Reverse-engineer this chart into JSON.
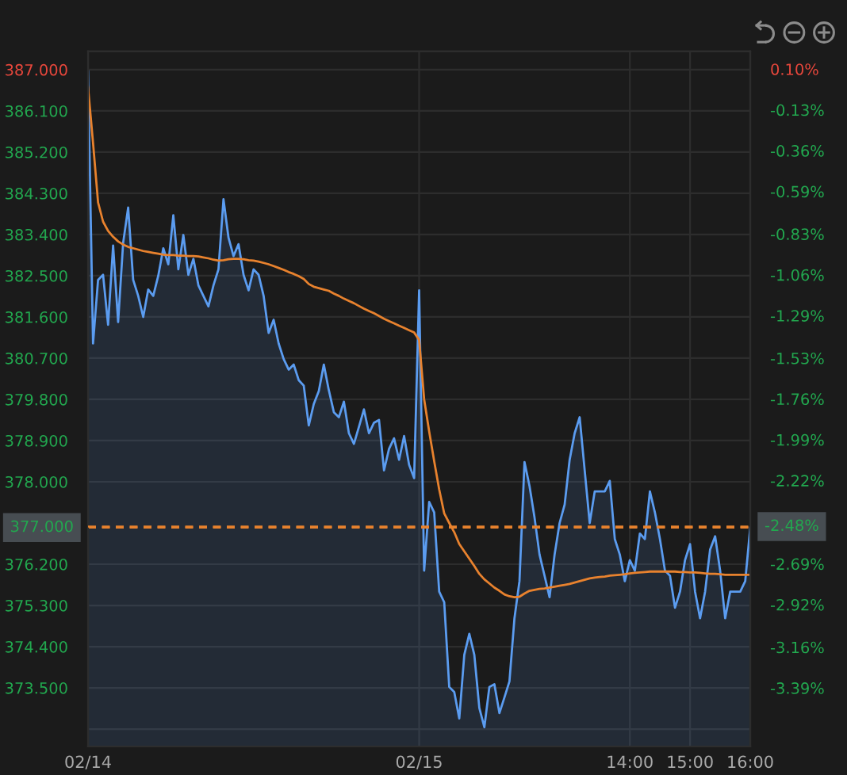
{
  "chart_data": {
    "type": "area",
    "categories": [
      "02/14",
      null,
      null,
      null,
      null,
      null,
      null,
      null,
      null,
      null,
      null,
      null,
      null,
      null,
      null,
      null,
      null,
      null,
      null,
      null,
      null,
      null,
      null,
      null,
      null,
      null,
      null,
      null,
      null,
      null,
      null,
      null,
      null,
      null,
      null,
      null,
      null,
      null,
      null,
      null,
      null,
      null,
      null,
      null,
      null,
      null,
      null,
      null,
      null,
      null,
      null,
      null,
      null,
      null,
      null,
      null,
      null,
      null,
      null,
      null,
      null,
      null,
      null,
      null,
      null,
      null,
      "02/15",
      null,
      null,
      null,
      null,
      null,
      null,
      null,
      null,
      null,
      null,
      null,
      null,
      null,
      null,
      null,
      null,
      null,
      null,
      null,
      null,
      null,
      null,
      null,
      null,
      null,
      null,
      null,
      null,
      null,
      null,
      null,
      null,
      null,
      null,
      null,
      null,
      null,
      null,
      null,
      null,
      null,
      "14:00",
      null,
      null,
      null,
      null,
      null,
      null,
      null,
      null,
      null,
      null,
      null,
      "15:00",
      null,
      null,
      null,
      null,
      null,
      null,
      null,
      null,
      null,
      null,
      null,
      "16:00"
    ],
    "series": [
      {
        "color": "#5b9cf0",
        "values": [
          386.96,
          381.02,
          382.41,
          382.52,
          381.43,
          383.16,
          381.49,
          383.22,
          383.99,
          382.41,
          382.06,
          381.6,
          382.2,
          382.06,
          382.5,
          383.1,
          382.75,
          383.82,
          382.64,
          383.39,
          382.52,
          382.87,
          382.29,
          382.06,
          381.83,
          382.29,
          382.64,
          384.17,
          383.33,
          382.93,
          383.19,
          382.52,
          382.18,
          382.64,
          382.52,
          382.06,
          381.25,
          381.54,
          381.02,
          380.68,
          380.45,
          380.56,
          380.22,
          380.1,
          379.23,
          379.7,
          379.98,
          380.56,
          380.0,
          379.52,
          379.41,
          379.75,
          379.06,
          378.83,
          379.2,
          379.58,
          379.06,
          379.29,
          379.35,
          378.25,
          378.72,
          378.95,
          378.48,
          379.0,
          378.37,
          378.08,
          382.18,
          376.06,
          377.56,
          377.33,
          375.6,
          375.37,
          373.52,
          373.41,
          372.83,
          374.22,
          374.68,
          374.22,
          373.06,
          372.64,
          373.52,
          373.58,
          372.95,
          373.29,
          373.64,
          375.02,
          375.83,
          378.43,
          377.91,
          377.22,
          376.41,
          375.95,
          375.48,
          376.41,
          377.1,
          377.5,
          378.48,
          379.06,
          379.41,
          378.25,
          377.1,
          377.79,
          377.79,
          377.79,
          378.02,
          376.75,
          376.41,
          375.83,
          376.29,
          376.06,
          376.87,
          376.75,
          377.79,
          377.33,
          376.75,
          376.06,
          375.95,
          375.25,
          375.6,
          376.29,
          376.64,
          375.6,
          375.02,
          375.6,
          376.52,
          376.81,
          376.06,
          375.02,
          375.6,
          375.6,
          375.6,
          375.83,
          377.0
        ]
      },
      {
        "type": "line",
        "color": "#e8822e",
        "values": [
          386.62,
          385.4,
          384.1,
          383.68,
          383.48,
          383.35,
          383.25,
          383.18,
          383.13,
          383.1,
          383.07,
          383.04,
          383.02,
          383.0,
          382.98,
          382.96,
          382.95,
          382.95,
          382.94,
          382.94,
          382.93,
          382.93,
          382.92,
          382.9,
          382.88,
          382.85,
          382.83,
          382.84,
          382.86,
          382.87,
          382.87,
          382.86,
          382.84,
          382.83,
          382.81,
          382.78,
          382.75,
          382.71,
          382.67,
          382.63,
          382.58,
          382.54,
          382.49,
          382.43,
          382.32,
          382.26,
          382.23,
          382.2,
          382.17,
          382.11,
          382.06,
          382.0,
          381.95,
          381.9,
          381.84,
          381.78,
          381.73,
          381.68,
          381.62,
          381.56,
          381.51,
          381.46,
          381.41,
          381.36,
          381.31,
          381.26,
          381.1,
          379.8,
          379.1,
          378.45,
          377.83,
          377.31,
          377.1,
          376.9,
          376.64,
          376.48,
          376.32,
          376.16,
          375.99,
          375.87,
          375.78,
          375.69,
          375.62,
          375.54,
          375.5,
          375.48,
          375.49,
          375.56,
          375.62,
          375.64,
          375.66,
          375.67,
          375.69,
          375.71,
          375.73,
          375.75,
          375.77,
          375.8,
          375.83,
          375.86,
          375.89,
          375.91,
          375.92,
          375.93,
          375.95,
          375.96,
          375.97,
          375.98,
          376.0,
          376.01,
          376.02,
          376.03,
          376.04,
          376.04,
          376.04,
          376.04,
          376.04,
          376.04,
          376.03,
          376.03,
          376.02,
          376.02,
          376.01,
          376.0,
          375.99,
          375.99,
          375.98,
          375.97,
          375.97,
          375.97,
          375.97,
          375.97,
          375.97
        ]
      }
    ],
    "ylim": [
      372.22,
      387.4
    ],
    "yticks": [
      {
        "value": 387,
        "label": "387.000"
      },
      {
        "value": 386.1,
        "label": "386.100"
      },
      {
        "value": 385.2,
        "label": "385.200"
      },
      {
        "value": 384.3,
        "label": "384.300"
      },
      {
        "value": 383.4,
        "label": "383.400"
      },
      {
        "value": 382.5,
        "label": "382.500"
      },
      {
        "value": 381.6,
        "label": "381.600"
      },
      {
        "value": 380.7,
        "label": "380.700"
      },
      {
        "value": 379.8,
        "label": "379.800"
      },
      {
        "value": 378.9,
        "label": "378.900"
      },
      {
        "value": 378,
        "label": "378.000"
      },
      {
        "value": 376.2,
        "label": "376.200"
      },
      {
        "value": 375.3,
        "label": "375.300"
      },
      {
        "value": 374.4,
        "label": "374.400"
      },
      {
        "value": 373.5,
        "label": "373.500"
      },
      {
        "value": 372.6,
        "label": null
      }
    ],
    "y2lim": [
      -3.72,
      0.2
    ],
    "y2ticks": [
      {
        "value": 0.1,
        "label": "0.10%"
      },
      {
        "value": -0.13,
        "label": "-0.13%"
      },
      {
        "value": -0.36,
        "label": "-0.36%"
      },
      {
        "value": -0.59,
        "label": "-0.59%"
      },
      {
        "value": -0.83,
        "label": "-0.83%"
      },
      {
        "value": -1.06,
        "label": "-1.06%"
      },
      {
        "value": -1.29,
        "label": "-1.29%"
      },
      {
        "value": -1.53,
        "label": "-1.53%"
      },
      {
        "value": -1.76,
        "label": "-1.76%"
      },
      {
        "value": -1.99,
        "label": "-1.99%"
      },
      {
        "value": -2.22,
        "label": "-2.22%"
      },
      {
        "value": -2.69,
        "label": "-2.69%"
      },
      {
        "value": -2.92,
        "label": "-2.92%"
      },
      {
        "value": -3.16,
        "label": "-3.16%"
      },
      {
        "value": -3.39,
        "label": "-3.39%"
      }
    ],
    "ref_lines": [
      {
        "axis": "y",
        "value": 377.0,
        "label": "377.000",
        "color": "#e8822e",
        "line_style": "dashed"
      },
      {
        "axis": "y2",
        "value": -2.48,
        "label": "-2.48%",
        "color": "#e8822e",
        "line_style": "dashed"
      }
    ],
    "grid": true
  }
}
